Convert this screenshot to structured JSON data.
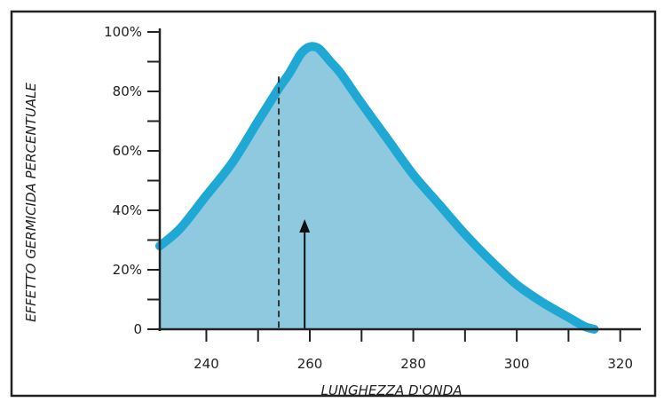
{
  "chart_data": {
    "type": "area",
    "title": "",
    "xlabel": "LUNGHEZZA D'ONDA",
    "ylabel": "EFFETTO GERMICIDA PERCENTUALE",
    "xlim": [
      231,
      324
    ],
    "ylim": [
      0,
      100
    ],
    "x_ticks": [
      {
        "value": 240,
        "label": "240"
      },
      {
        "value": 260,
        "label": "260"
      },
      {
        "value": 280,
        "label": "280"
      },
      {
        "value": 300,
        "label": "300"
      },
      {
        "value": 320,
        "label": "320"
      }
    ],
    "x_minor_ticks": [
      250,
      270,
      290,
      310
    ],
    "y_ticks": [
      {
        "value": 0,
        "label": "0"
      },
      {
        "value": 20,
        "label": "20%"
      },
      {
        "value": 40,
        "label": "40%"
      },
      {
        "value": 60,
        "label": "60%"
      },
      {
        "value": 80,
        "label": "80%"
      },
      {
        "value": 100,
        "label": "100%"
      }
    ],
    "y_minor_ticks": [
      10,
      30,
      50,
      70,
      90
    ],
    "series": [
      {
        "x": [
          231,
          235,
          240,
          245,
          250,
          254,
          256,
          258,
          259,
          260,
          261,
          262,
          264,
          266,
          270,
          275,
          280,
          285,
          290,
          295,
          300,
          305,
          310,
          313,
          315
        ],
        "y": [
          28,
          34,
          45,
          56,
          70,
          81,
          86,
          92,
          94,
          95,
          95,
          94,
          90,
          86,
          76,
          64,
          52,
          42,
          32,
          23,
          15,
          9,
          4,
          1,
          0
        ]
      }
    ],
    "annotations": {
      "dashed_line_x": 254,
      "dashed_line_y": 85,
      "arrow_x": 259,
      "arrow_y_from": 0,
      "arrow_y_to": 37
    },
    "colors": {
      "curve": "#1fa8d4",
      "fill": "#8ec9df",
      "axis": "#222222",
      "border": "#222222",
      "background": "#ffffff"
    },
    "grid": false
  }
}
